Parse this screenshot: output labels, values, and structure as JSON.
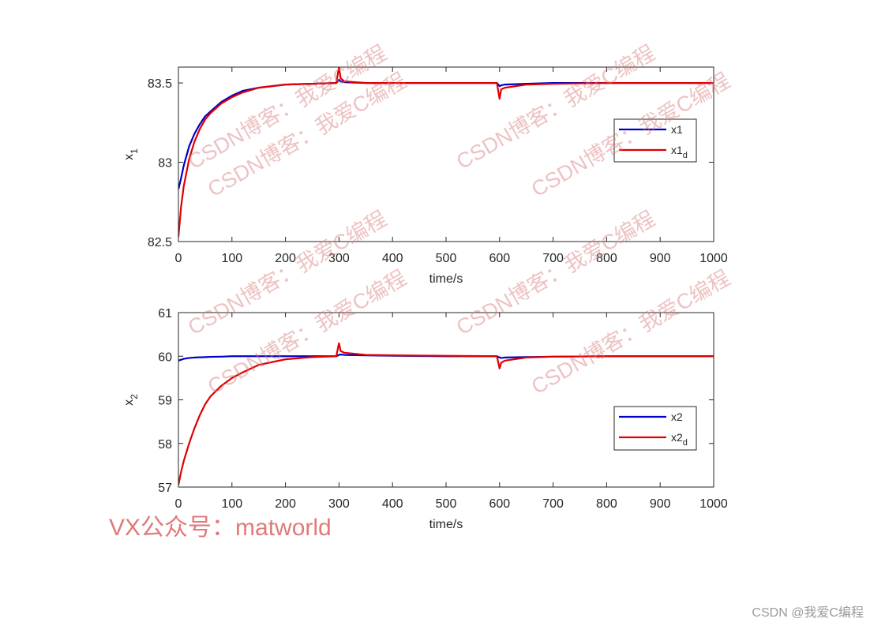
{
  "chart_data": [
    {
      "type": "line",
      "ylabel": "x",
      "ylabel_subscript": "1",
      "xlabel": "time/s",
      "x": [
        0,
        5,
        10,
        20,
        30,
        40,
        50,
        60,
        80,
        100,
        120,
        150,
        200,
        250,
        295,
        300,
        303,
        310,
        350,
        400,
        500,
        595,
        600,
        603,
        610,
        650,
        700,
        800,
        900,
        1000
      ],
      "series": [
        {
          "name": "x1",
          "color": "#0000c8",
          "values": [
            82.83,
            82.9,
            82.98,
            83.1,
            83.18,
            83.24,
            83.29,
            83.32,
            83.38,
            83.42,
            83.45,
            83.47,
            83.49,
            83.495,
            83.5,
            83.52,
            83.51,
            83.505,
            83.5,
            83.5,
            83.5,
            83.5,
            83.48,
            83.485,
            83.49,
            83.495,
            83.5,
            83.5,
            83.5,
            83.5
          ]
        },
        {
          "name": "x1",
          "name_subscript": "d",
          "color": "#e00000",
          "values": [
            82.53,
            82.72,
            82.85,
            83.02,
            83.13,
            83.21,
            83.27,
            83.31,
            83.37,
            83.41,
            83.44,
            83.47,
            83.49,
            83.495,
            83.5,
            83.6,
            83.53,
            83.51,
            83.5,
            83.5,
            83.5,
            83.5,
            83.4,
            83.46,
            83.47,
            83.49,
            83.495,
            83.5,
            83.5,
            83.5
          ]
        }
      ],
      "xlim": [
        0,
        1000
      ],
      "xticks": [
        0,
        100,
        200,
        300,
        400,
        500,
        600,
        700,
        800,
        900,
        1000
      ],
      "ylim": [
        82.5,
        83.6
      ],
      "yticks": [
        82.5,
        83,
        83.5
      ],
      "legend": "east",
      "grid": false
    },
    {
      "type": "line",
      "ylabel": "x",
      "ylabel_subscript": "2",
      "xlabel": "time/s",
      "x": [
        0,
        5,
        10,
        20,
        30,
        40,
        50,
        60,
        80,
        100,
        120,
        150,
        200,
        250,
        295,
        300,
        303,
        310,
        350,
        400,
        500,
        595,
        600,
        603,
        610,
        650,
        700,
        800,
        900,
        1000
      ],
      "series": [
        {
          "name": "x2",
          "color": "#0000c8",
          "values": [
            59.9,
            59.92,
            59.94,
            59.96,
            59.97,
            59.975,
            59.98,
            59.985,
            59.99,
            60,
            60,
            60,
            60,
            60,
            60,
            60.03,
            60.04,
            60.03,
            60.02,
            60.01,
            60,
            60,
            59.97,
            59.96,
            59.97,
            59.98,
            59.99,
            60,
            60,
            60
          ]
        },
        {
          "name": "x2",
          "name_subscript": "d",
          "color": "#e00000",
          "values": [
            57.05,
            57.35,
            57.6,
            58.0,
            58.35,
            58.65,
            58.9,
            59.08,
            59.32,
            59.5,
            59.63,
            59.8,
            59.93,
            59.98,
            60,
            60.3,
            60.12,
            60.08,
            60.03,
            60.02,
            60.01,
            60,
            59.72,
            59.85,
            59.9,
            59.97,
            59.99,
            60,
            60,
            60
          ]
        }
      ],
      "xlim": [
        0,
        1000
      ],
      "xticks": [
        0,
        100,
        200,
        300,
        400,
        500,
        600,
        700,
        800,
        900,
        1000
      ],
      "ylim": [
        57,
        61
      ],
      "yticks": [
        57,
        58,
        59,
        60,
        61
      ],
      "legend": "east",
      "grid": false
    }
  ],
  "watermarks": [
    "CSDN博客：我爱C编程",
    "CSDN博客：我爱C编程",
    "CSDN博客：我爱C编程",
    "CSDN博客：我爱C编程",
    "CSDN博客：我爱C编程",
    "CSDN博客：我爱C编程",
    "CSDN博客：我爱C编程",
    "CSDN博客：我爱C编程"
  ],
  "footer_left": "VX公众号：matworld",
  "footer_right": "CSDN @我爱C编程"
}
